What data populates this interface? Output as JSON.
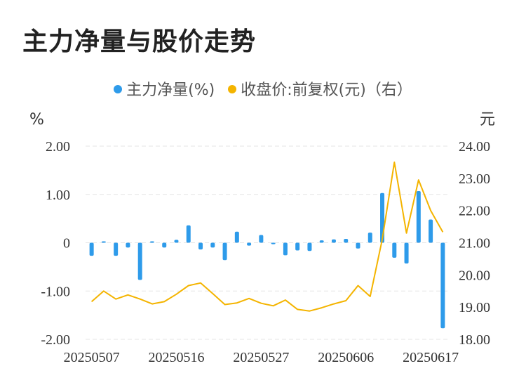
{
  "title": "主力净量与股价走势",
  "legend": [
    {
      "label": "主力净量(%)",
      "color": "#2E9BEA"
    },
    {
      "label": "收盘价:前复权(元)（右）",
      "color": "#F4B400"
    }
  ],
  "chart_data": {
    "type": "bar+line",
    "title": "主力净量与股价走势",
    "left_axis": {
      "unit": "%",
      "ylim": [
        -2,
        2
      ],
      "ticks": [
        "2.00",
        "1.00",
        "0",
        "-1.00",
        "-2.00"
      ],
      "tick_values": [
        2,
        1,
        0,
        -1,
        -2
      ]
    },
    "right_axis": {
      "unit": "元",
      "ylim": [
        18,
        24
      ],
      "ticks": [
        "24.00",
        "23.00",
        "22.00",
        "21.00",
        "20.00",
        "19.00",
        "18.00"
      ],
      "tick_values": [
        24,
        23,
        22,
        21,
        20,
        19,
        18
      ]
    },
    "x_tick_labels": [
      "20250507",
      "20250516",
      "20250527",
      "20250606",
      "20250617"
    ],
    "x_tick_indices": [
      0,
      7,
      14,
      21,
      28
    ],
    "grid": true,
    "legend_position": "top-center",
    "series": [
      {
        "name": "主力净量(%)",
        "type": "bar",
        "axis": "left",
        "color": "#2E9BEA",
        "values": [
          -0.27,
          0.03,
          -0.27,
          -0.1,
          -0.77,
          0.03,
          -0.1,
          0.06,
          0.36,
          -0.14,
          -0.1,
          -0.36,
          0.23,
          -0.06,
          0.16,
          -0.03,
          -0.26,
          -0.16,
          -0.17,
          0.05,
          0.07,
          0.08,
          -0.12,
          0.21,
          1.03,
          -0.31,
          -0.43,
          1.07,
          0.48,
          -1.77
        ]
      },
      {
        "name": "收盘价:前复权(元)（右）",
        "type": "line",
        "axis": "right",
        "color": "#F4B400",
        "values": [
          19.17,
          19.5,
          19.25,
          19.38,
          19.25,
          19.1,
          19.17,
          19.4,
          19.67,
          19.75,
          19.42,
          19.08,
          19.13,
          19.27,
          19.12,
          19.04,
          19.22,
          18.93,
          18.88,
          18.98,
          19.1,
          19.2,
          19.67,
          19.33,
          21.1,
          23.5,
          21.3,
          22.95,
          22.0,
          21.33
        ]
      }
    ]
  }
}
